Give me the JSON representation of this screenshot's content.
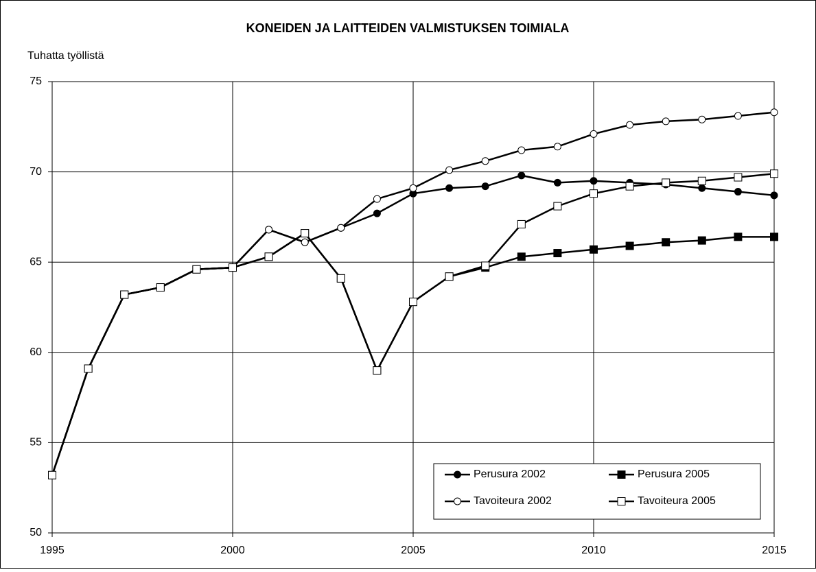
{
  "chart_data": {
    "type": "line",
    "title": "KONEIDEN JA LAITTEIDEN VALMISTUKSEN TOIMIALA",
    "y_label": "Tuhatta työllistä",
    "x": [
      1995,
      1996,
      1997,
      1998,
      1999,
      2000,
      2001,
      2002,
      2003,
      2004,
      2005,
      2006,
      2007,
      2008,
      2009,
      2010,
      2011,
      2012,
      2013,
      2014,
      2015
    ],
    "series": [
      {
        "name": "Perusura 2002",
        "color": "#000000",
        "marker": "circle",
        "marker_fill": "#000000",
        "values": [
          53.2,
          59.1,
          63.2,
          63.6,
          64.6,
          64.7,
          66.8,
          66.1,
          66.9,
          67.7,
          68.8,
          69.1,
          69.2,
          69.8,
          69.4,
          69.5,
          69.4,
          69.3,
          69.1,
          68.9,
          68.7
        ]
      },
      {
        "name": "Perusura 2005",
        "color": "#000000",
        "marker": "square",
        "marker_fill": "#000000",
        "values": [
          53.2,
          59.1,
          63.2,
          63.6,
          64.6,
          64.7,
          65.3,
          66.6,
          64.1,
          59.0,
          62.8,
          64.2,
          64.7,
          65.3,
          65.5,
          65.7,
          65.9,
          66.1,
          66.2,
          66.4,
          66.4
        ]
      },
      {
        "name": "Tavoiteura 2002",
        "color": "#000000",
        "marker": "circle",
        "marker_fill": "#ffffff",
        "values": [
          53.2,
          59.1,
          63.2,
          63.6,
          64.6,
          64.7,
          66.8,
          66.1,
          66.9,
          68.5,
          69.1,
          70.1,
          70.6,
          71.2,
          71.4,
          72.1,
          72.6,
          72.8,
          72.9,
          73.1,
          73.3
        ]
      },
      {
        "name": "Tavoiteura 2005",
        "color": "#000000",
        "marker": "square",
        "marker_fill": "#ffffff",
        "values": [
          53.2,
          59.1,
          63.2,
          63.6,
          64.6,
          64.7,
          65.3,
          66.6,
          64.1,
          59.0,
          62.8,
          64.2,
          64.8,
          67.1,
          68.1,
          68.8,
          69.2,
          69.4,
          69.5,
          69.7,
          69.9
        ]
      }
    ],
    "xlim": [
      1995,
      2015
    ],
    "xticks": [
      1995,
      2000,
      2005,
      2010,
      2015
    ],
    "ylim": [
      50,
      75
    ],
    "yticks": [
      50,
      55,
      60,
      65,
      70,
      75
    ],
    "grid": true,
    "legend": "lower right"
  }
}
